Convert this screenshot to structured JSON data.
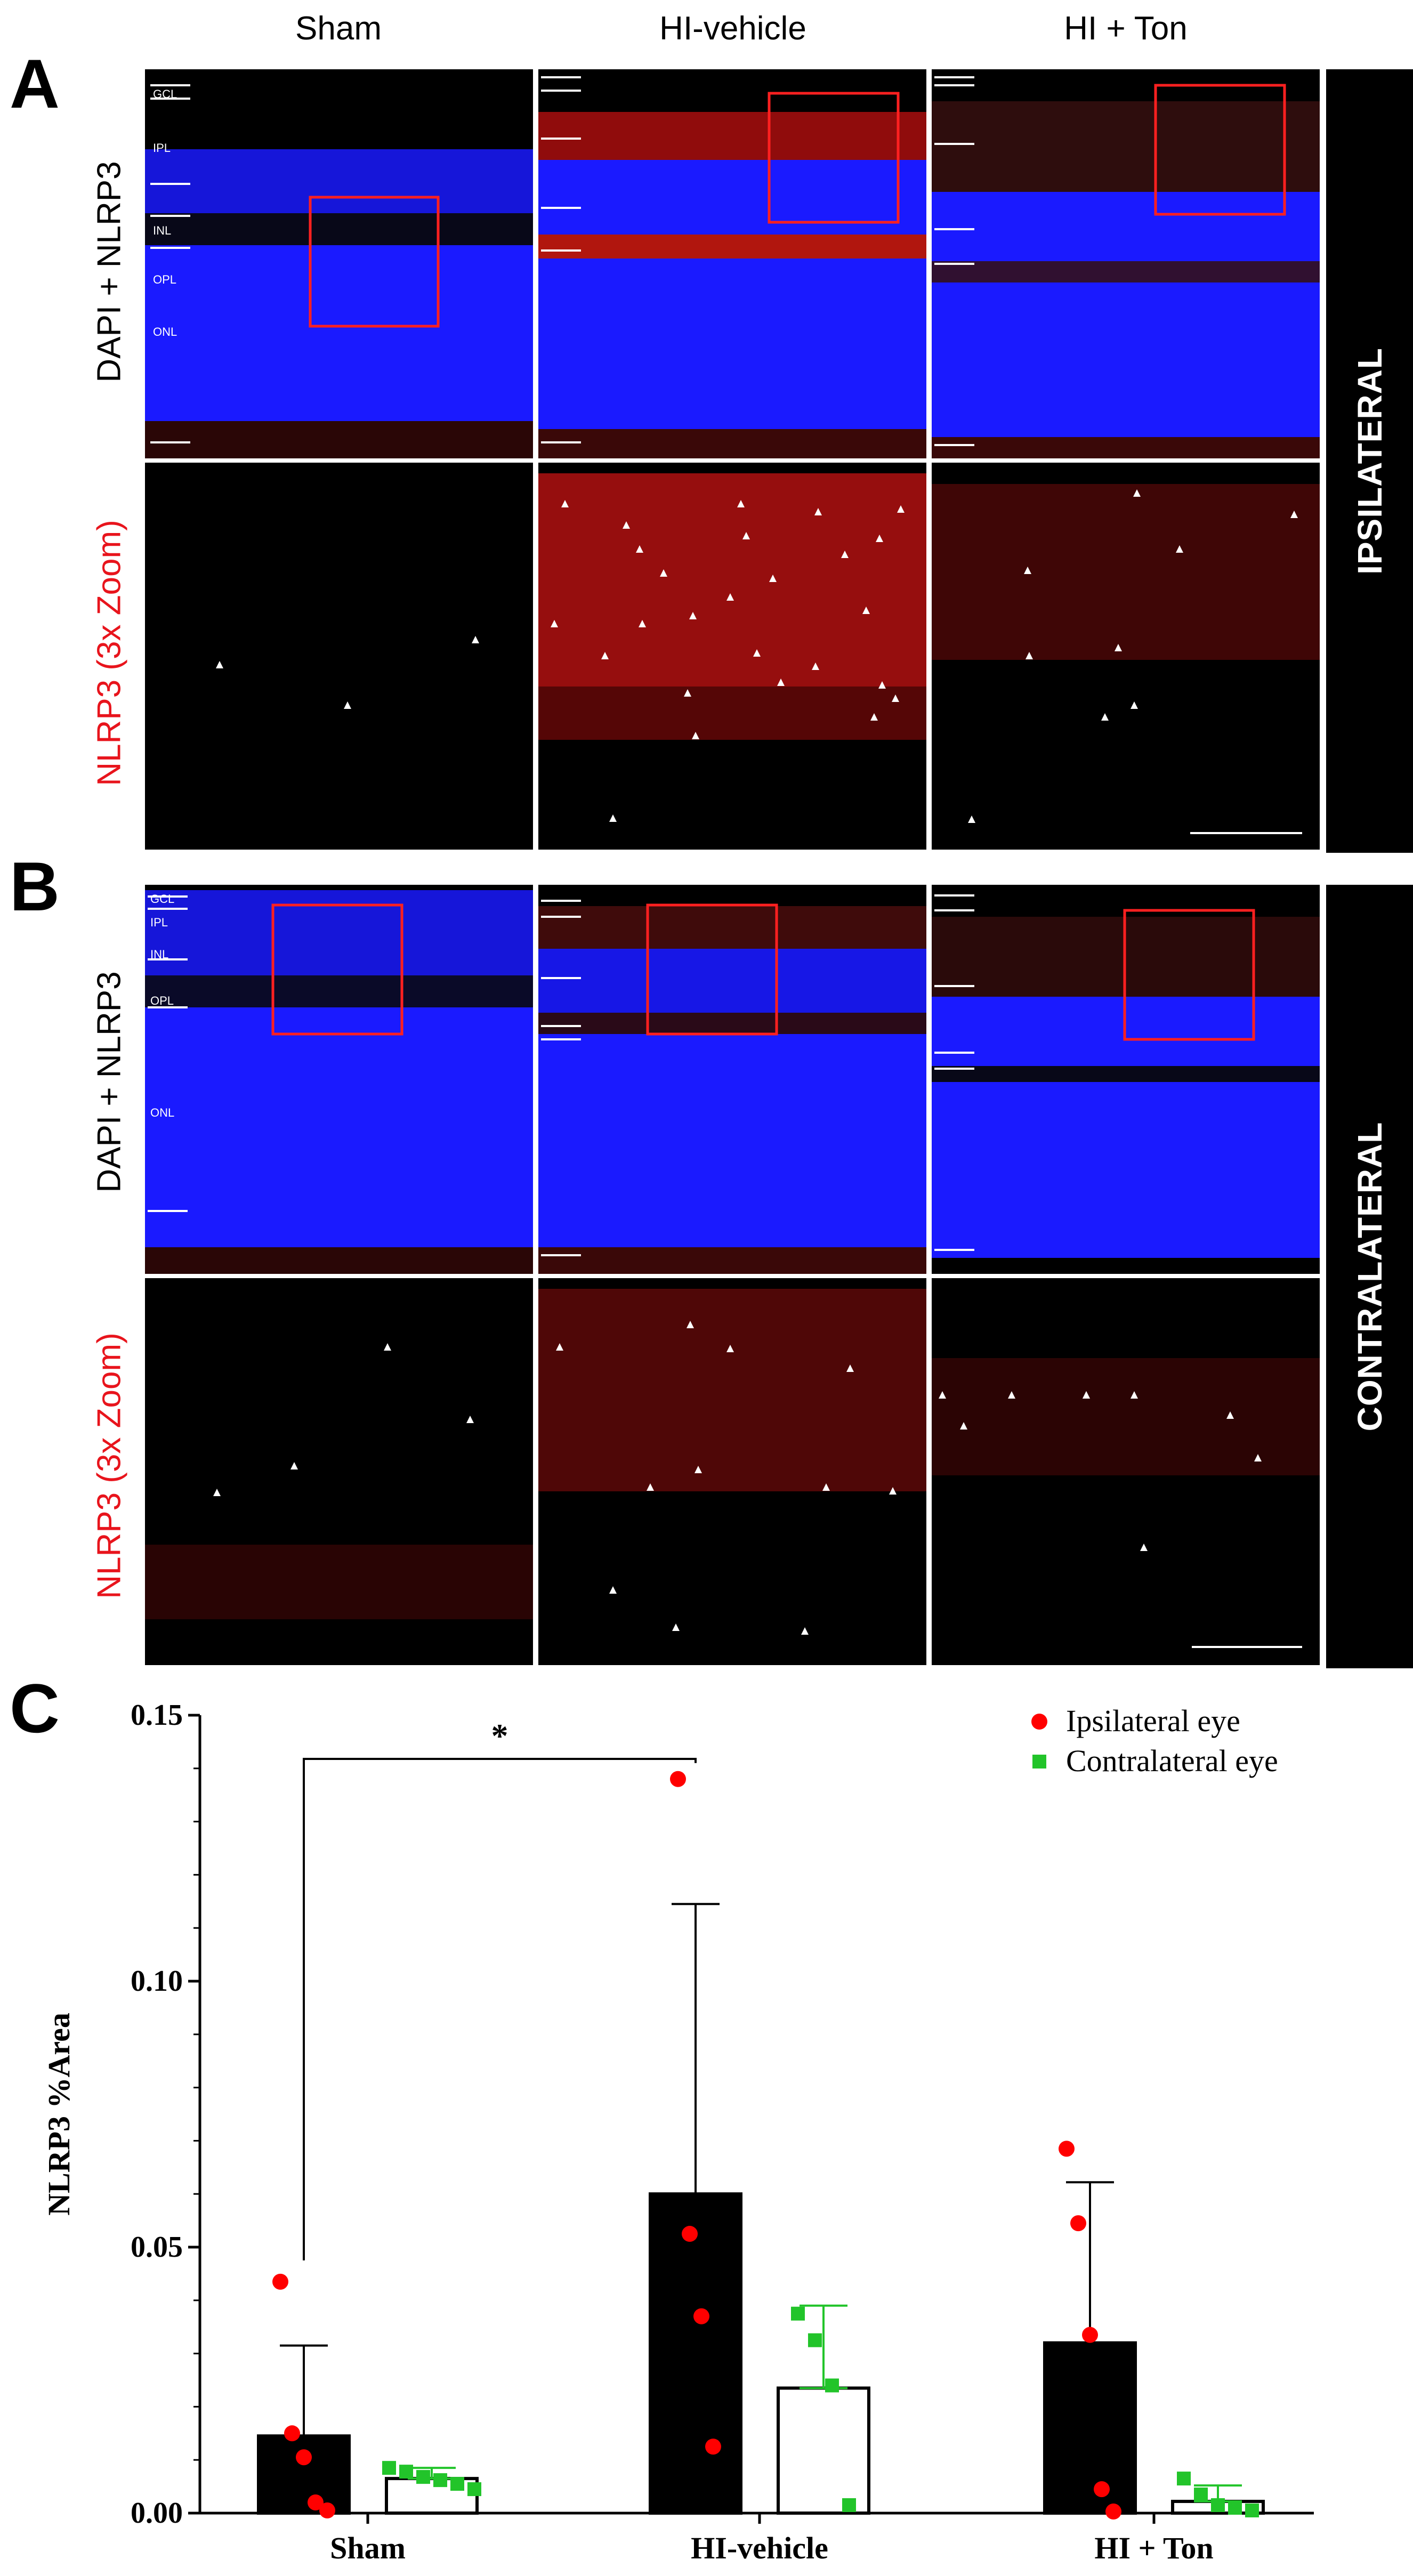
{
  "panels": {
    "a_letter": "A",
    "b_letter": "B",
    "c_letter": "C"
  },
  "columns": [
    "Sham",
    "HI-vehicle",
    "HI + Ton"
  ],
  "rows": {
    "merge_label": "DAPI + NLRP3",
    "zoom_label": "NLRP3 (3x Zoom)",
    "ipsilateral": "IPSILATERAL",
    "contralateral": "CONTRALATERAL"
  },
  "layers_a": [
    "GCL",
    "IPL",
    "INL",
    "OPL",
    "ONL"
  ],
  "layers_b": [
    "GCL",
    "IPL",
    "INL",
    "OPL",
    "ONL"
  ],
  "colors": {
    "nucleus_blue": "#1a1aff",
    "nlrp3_red": "#e01010",
    "roi_box": "#ff2020",
    "ipsi_marker": "#ff0000",
    "contra_marker": "#22c42a",
    "zoom_label_color": "#e8141c"
  },
  "chart_data": {
    "type": "bar",
    "categories": [
      "Sham",
      "HI-vehicle",
      "HI + Ton"
    ],
    "ylabel": "NLRP3 %Area",
    "xlabel": "",
    "ylim": [
      0,
      0.15
    ],
    "yticks": [
      "0.00",
      "0.05",
      "0.10",
      "0.15"
    ],
    "legend_position": "top-right",
    "series": [
      {
        "name": "Ipsilateral eye",
        "fill": "#000000",
        "marker": "circle",
        "marker_color": "#ff0000",
        "means": [
          0.0145,
          0.06,
          0.032
        ],
        "sd": [
          0.017,
          0.0545,
          0.0302
        ],
        "points": [
          [
            0.0435,
            0.015,
            0.0105,
            0.002,
            0.0005
          ],
          [
            0.138,
            0.0525,
            0.037,
            0.0125
          ],
          [
            0.0685,
            0.0545,
            0.0335,
            0.0045,
            0.0003
          ]
        ]
      },
      {
        "name": "Contralateral eye",
        "fill": "#ffffff",
        "marker": "square",
        "marker_color": "#22c42a",
        "means": [
          0.0065,
          0.0235,
          0.0022
        ],
        "sd": [
          0.002,
          0.0155,
          0.003
        ],
        "points": [
          [
            0.0085,
            0.0078,
            0.0068,
            0.0062,
            0.0055,
            0.0045
          ],
          [
            0.0375,
            0.0325,
            0.024,
            0.0015
          ],
          [
            0.0065,
            0.0035,
            0.0015,
            0.001,
            0.0005
          ]
        ]
      }
    ],
    "significance": [
      {
        "from_category": "Sham",
        "to_category": "HI-vehicle",
        "label": "*"
      }
    ]
  }
}
